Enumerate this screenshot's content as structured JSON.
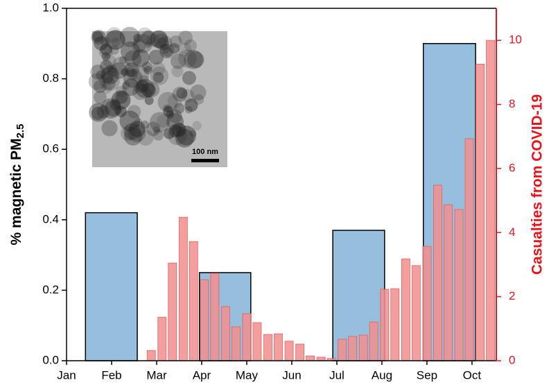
{
  "chart_data": {
    "type": "bar",
    "ylabel": {
      "text": "% magnetic PM",
      "subscript": "2.5"
    },
    "y2label": "Casualties from COVID-19",
    "y2color": "#e8141c",
    "annotations": [
      "100 nm"
    ],
    "xlim": [
      1,
      10.54
    ],
    "xticks": [
      {
        "value": 1,
        "label": "Jan"
      },
      {
        "value": 2,
        "label": "Feb"
      },
      {
        "value": 3,
        "label": "Mar"
      },
      {
        "value": 4,
        "label": "Apr"
      },
      {
        "value": 5,
        "label": "May"
      },
      {
        "value": 6,
        "label": "Jun"
      },
      {
        "value": 7,
        "label": "Jul"
      },
      {
        "value": 8,
        "label": "Aug"
      },
      {
        "value": 9,
        "label": "Sep"
      },
      {
        "value": 10,
        "label": "Oct"
      }
    ],
    "ylim": [
      0,
      1
    ],
    "yticks": [
      {
        "value": 0,
        "label": "0.0"
      },
      0.2,
      0.4,
      0.6,
      0.8,
      {
        "value": 1,
        "label": "1.0"
      }
    ],
    "y2lim": [
      0,
      11
    ],
    "y2ticks": [
      0,
      2,
      4,
      6,
      8,
      10
    ],
    "series": [
      {
        "color": "#8fbcdb",
        "x_start": [
          1.42,
          3.95,
          6.91,
          8.92
        ],
        "x_end": [
          2.57,
          5.09,
          8.06,
          10.08
        ],
        "values": [
          0.42,
          0.25,
          0.37,
          0.9
        ]
      },
      {
        "axis": "y2",
        "color": "#f28e8e",
        "x": [
          2.88,
          3.12,
          3.35,
          3.59,
          3.82,
          4.06,
          4.29,
          4.53,
          4.76,
          5.0,
          5.23,
          5.47,
          5.7,
          5.94,
          6.18,
          6.41,
          6.65,
          6.88,
          7.12,
          7.35,
          7.59,
          7.82,
          8.06,
          8.29,
          8.53,
          8.76,
          9.0,
          9.24,
          9.47,
          9.71,
          9.94,
          10.18,
          10.41
        ],
        "values": [
          0.32,
          1.36,
          3.05,
          4.48,
          3.72,
          2.53,
          2.73,
          1.69,
          1.06,
          1.47,
          1.19,
          0.82,
          0.84,
          0.61,
          0.52,
          0.15,
          0.11,
          0.07,
          0.67,
          0.76,
          0.8,
          1.21,
          2.23,
          2.25,
          3.18,
          2.97,
          3.57,
          5.48,
          4.87,
          4.72,
          6.93,
          9.26,
          10.0
        ]
      }
    ]
  }
}
